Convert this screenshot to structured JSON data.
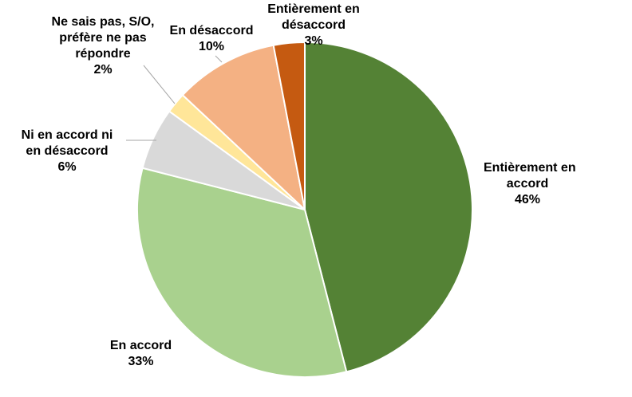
{
  "chart_data": {
    "type": "pie",
    "title": "",
    "slices": [
      {
        "label_lines": [
          "Entièrement en",
          "accord"
        ],
        "pct_label": "46%",
        "value": 46,
        "color": "#548235"
      },
      {
        "label_lines": [
          "En accord"
        ],
        "pct_label": "33%",
        "value": 33,
        "color": "#a9d18e"
      },
      {
        "label_lines": [
          "Ni en accord ni",
          "en désaccord"
        ],
        "pct_label": "6%",
        "value": 6,
        "color": "#d9d9d9"
      },
      {
        "label_lines": [
          "Ne sais pas, S/O,",
          "préfère ne pas",
          "répondre"
        ],
        "pct_label": "2%",
        "value": 2,
        "color": "#ffe699"
      },
      {
        "label_lines": [
          "En désaccord"
        ],
        "pct_label": "10%",
        "value": 10,
        "color": "#f4b183"
      },
      {
        "label_lines": [
          "Entièrement en",
          "désaccord"
        ],
        "pct_label": "3%",
        "value": 3,
        "color": "#c55a11"
      }
    ]
  }
}
